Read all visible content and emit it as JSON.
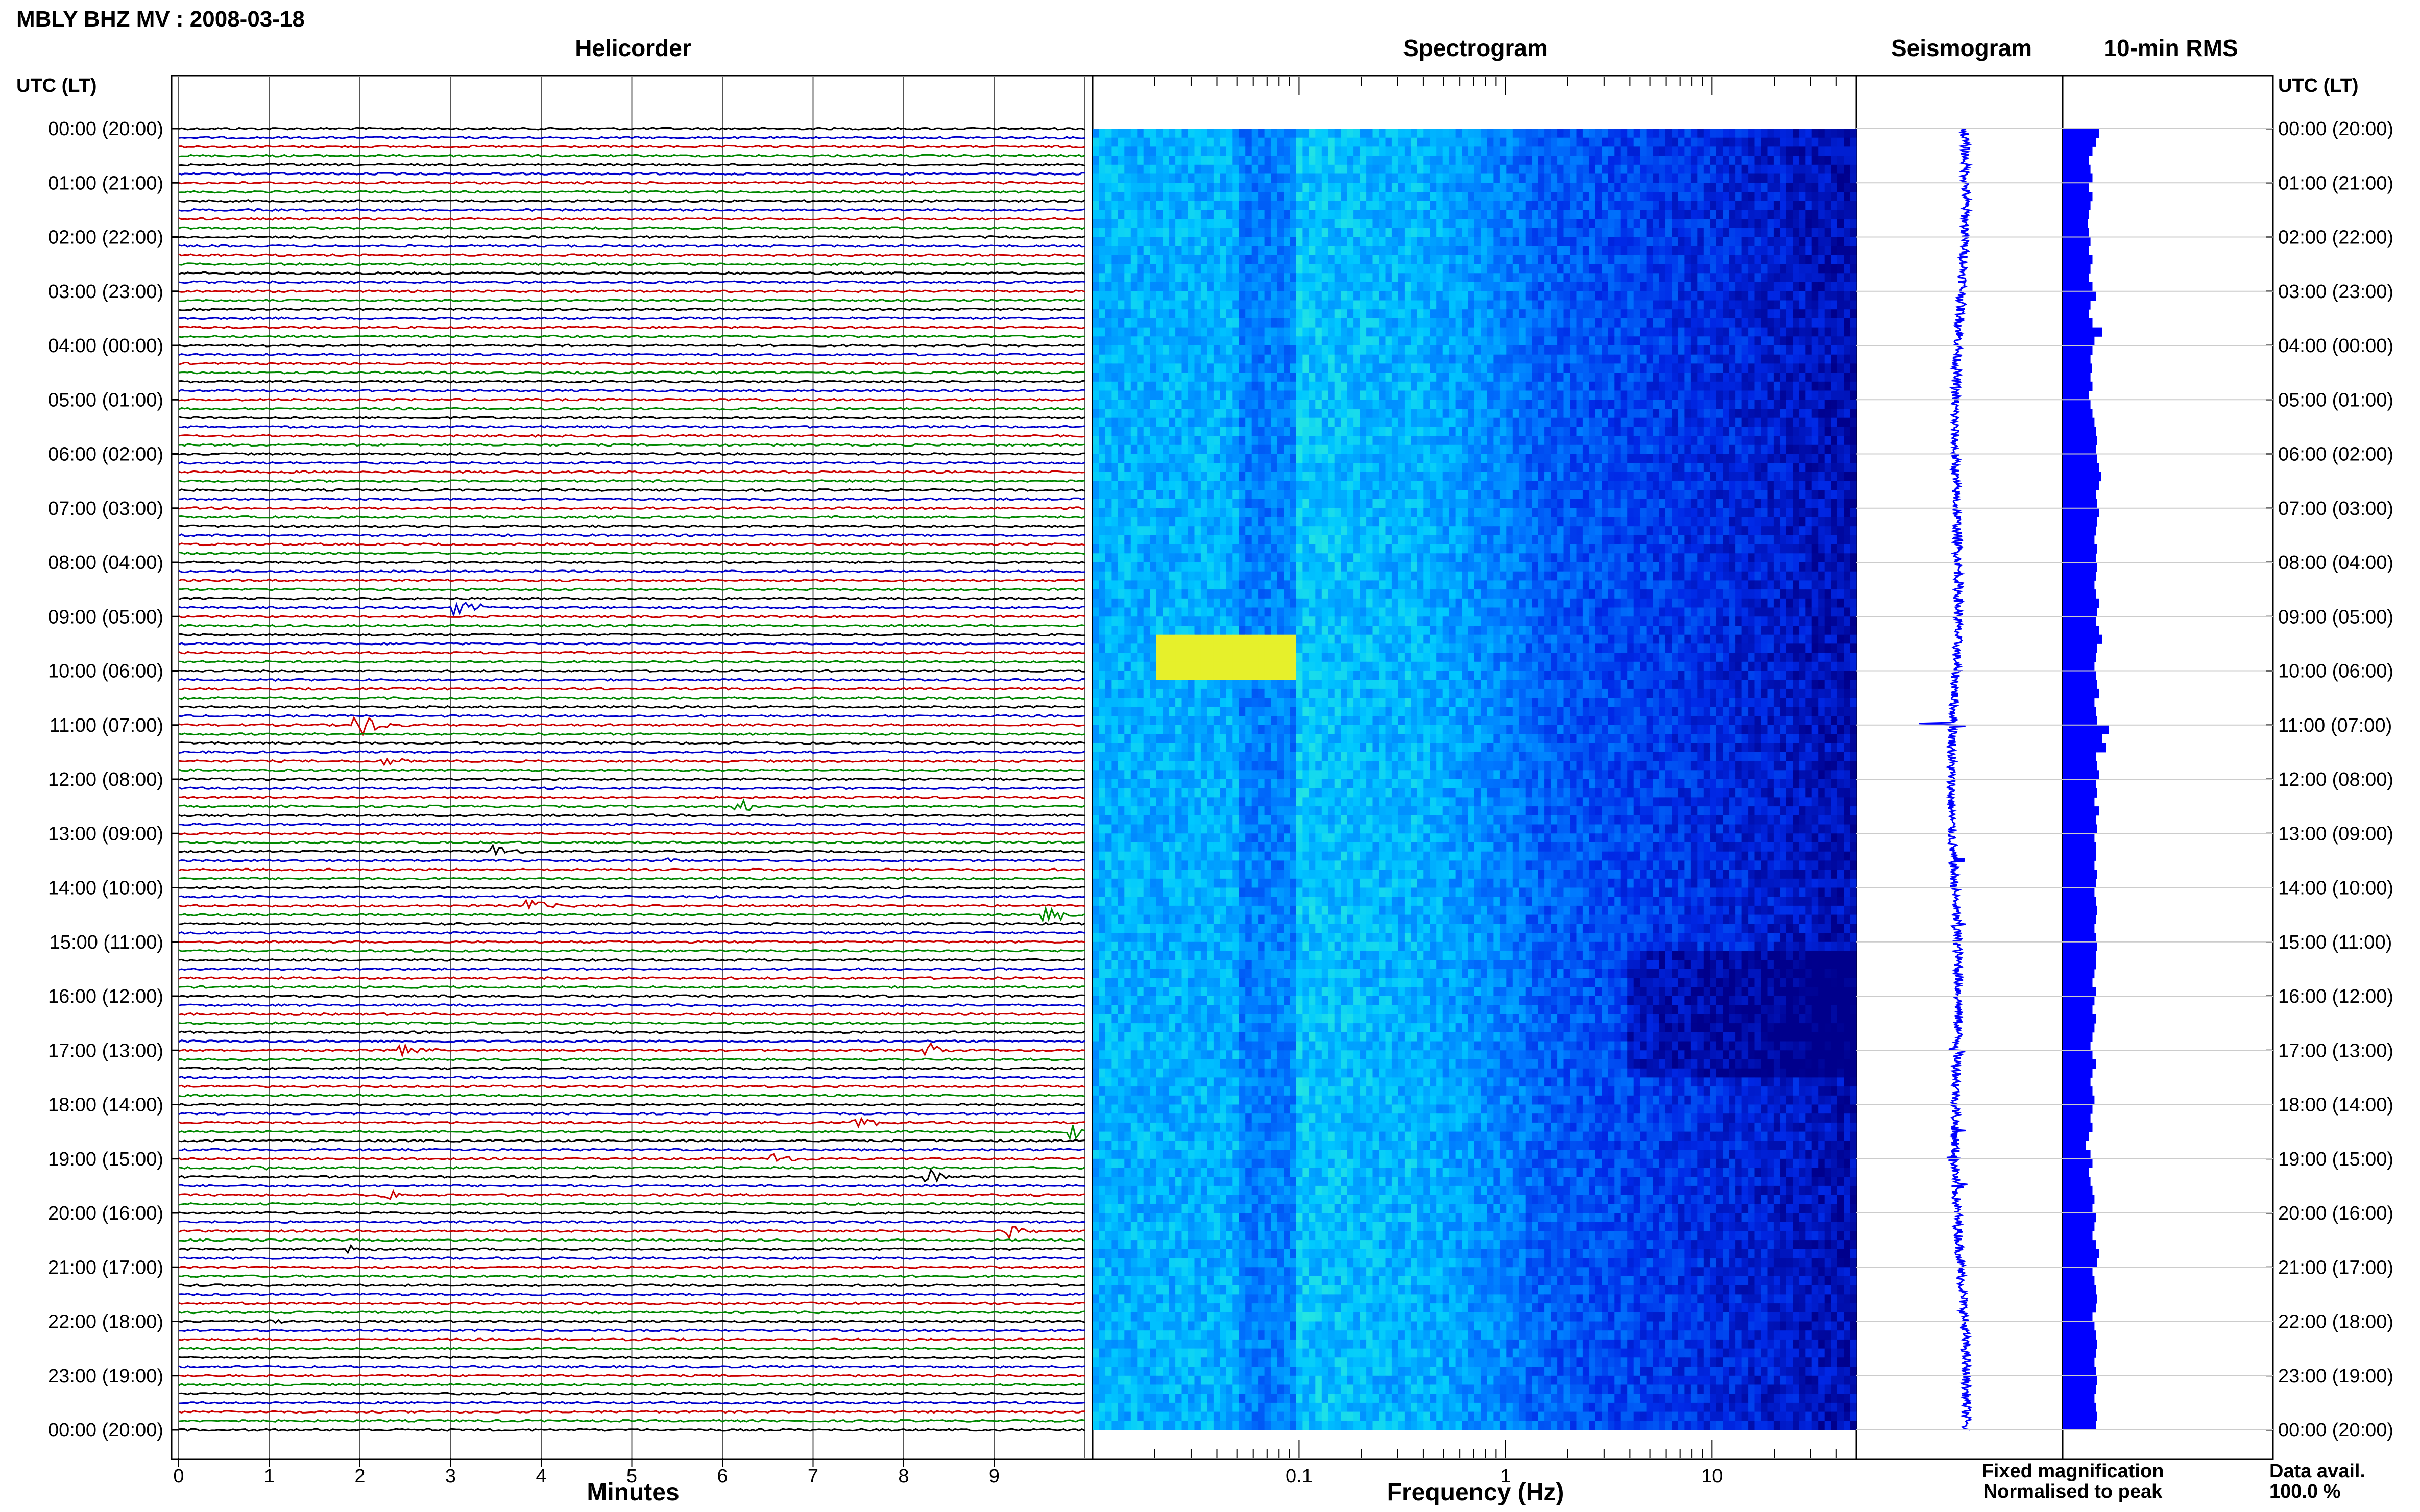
{
  "header": {
    "title": "MBLY BHZ MV : 2008-03-18",
    "utc_label_left": "UTC (LT)",
    "utc_label_right": "UTC (LT)"
  },
  "panels": {
    "helicorder": "Helicorder",
    "spectrogram": "Spectrogram",
    "seismogram": "Seismogram",
    "rms": "10-min RMS"
  },
  "time_labels": [
    "00:00 (20:00)",
    "01:00 (21:00)",
    "02:00 (22:00)",
    "03:00 (23:00)",
    "04:00 (00:00)",
    "05:00 (01:00)",
    "06:00 (02:00)",
    "07:00 (03:00)",
    "08:00 (04:00)",
    "09:00 (05:00)",
    "10:00 (06:00)",
    "11:00 (07:00)",
    "12:00 (08:00)",
    "13:00 (09:00)",
    "14:00 (10:00)",
    "15:00 (11:00)",
    "16:00 (12:00)",
    "17:00 (13:00)",
    "18:00 (14:00)",
    "19:00 (15:00)",
    "20:00 (16:00)",
    "21:00 (17:00)",
    "22:00 (18:00)",
    "23:00 (19:00)",
    "00:00 (20:00)"
  ],
  "legend": {
    "fixed": "Fixed magnification",
    "normalised": "Normalised to peak",
    "fixed_color": "#0000ff",
    "normalised_color": "#ff0000",
    "availability_label": "Data avail.",
    "availability_value": "100.0 %"
  },
  "colors": {
    "trace_cycle": [
      "#000000",
      "#0000cc",
      "#cc0000",
      "#008800"
    ],
    "seismogram": "#0000ff",
    "rms": "#0000ff"
  },
  "chart_data": [
    {
      "type": "line",
      "panel": "helicorder",
      "xlabel": "Minutes",
      "x_ticks": [
        "0",
        "1",
        "2",
        "3",
        "4",
        "5",
        "6",
        "7",
        "8",
        "9"
      ],
      "xlim": [
        0,
        10
      ],
      "lines_per_hour": 6,
      "hours": 24,
      "events": [
        {
          "hour": 8.9,
          "minute": 3.1,
          "amplitude": 0.6
        },
        {
          "hour": 11.0,
          "minute": 2.0,
          "amplitude": 1.0
        },
        {
          "hour": 11.7,
          "minute": 2.3,
          "amplitude": 0.3
        },
        {
          "hour": 12.5,
          "minute": 6.2,
          "amplitude": 0.5
        },
        {
          "hour": 13.3,
          "minute": 3.5,
          "amplitude": 0.5
        },
        {
          "hour": 13.5,
          "minute": 5.4,
          "amplitude": 0.2
        },
        {
          "hour": 14.3,
          "minute": 3.9,
          "amplitude": 0.4
        },
        {
          "hour": 14.5,
          "minute": 9.6,
          "amplitude": 0.6
        },
        {
          "hour": 17.0,
          "minute": 2.5,
          "amplitude": 0.5
        },
        {
          "hour": 17.0,
          "minute": 8.3,
          "amplitude": 0.4
        },
        {
          "hour": 18.3,
          "minute": 7.5,
          "amplitude": 0.5
        },
        {
          "hour": 18.5,
          "minute": 9.9,
          "amplitude": 0.5
        },
        {
          "hour": 19.0,
          "minute": 6.6,
          "amplitude": 0.4
        },
        {
          "hour": 19.2,
          "minute": 0.8,
          "amplitude": 0.3
        },
        {
          "hour": 19.3,
          "minute": 8.3,
          "amplitude": 0.5
        },
        {
          "hour": 19.7,
          "minute": 2.3,
          "amplitude": 0.4
        },
        {
          "hour": 20.3,
          "minute": 9.2,
          "amplitude": 0.5
        },
        {
          "hour": 20.7,
          "minute": 1.9,
          "amplitude": 0.3
        },
        {
          "hour": 22.0,
          "minute": 1.0,
          "amplitude": 0.2
        }
      ]
    },
    {
      "type": "heatmap",
      "panel": "spectrogram",
      "xlabel": "Frequency (Hz)",
      "x_scale": "log",
      "xlim": [
        0.01,
        50
      ],
      "x_ticks": [
        0.1,
        1,
        10
      ],
      "x_tick_labels": [
        "0.1",
        "1",
        "10"
      ],
      "ylim_hours": [
        0,
        24
      ]
    },
    {
      "type": "line",
      "panel": "seismogram",
      "ylim_hours": [
        0,
        24
      ],
      "spikes": [
        {
          "hour": 11.0,
          "amplitude": 1.0
        },
        {
          "hour": 13.5,
          "amplitude": 0.3
        },
        {
          "hour": 14.7,
          "amplitude": 0.3
        },
        {
          "hour": 17.0,
          "amplitude": 0.3
        },
        {
          "hour": 18.5,
          "amplitude": 0.3
        },
        {
          "hour": 19.0,
          "amplitude": 0.3
        },
        {
          "hour": 19.5,
          "amplitude": 0.3
        }
      ]
    },
    {
      "type": "bar",
      "panel": "rms",
      "orientation": "horizontal",
      "bin_minutes": 10,
      "ylim_hours": [
        0,
        24
      ],
      "values": [
        0.55,
        0.5,
        0.45,
        0.4,
        0.42,
        0.45,
        0.4,
        0.45,
        0.42,
        0.4,
        0.38,
        0.4,
        0.42,
        0.4,
        0.45,
        0.42,
        0.4,
        0.45,
        0.5,
        0.42,
        0.4,
        0.45,
        0.6,
        0.48,
        0.45,
        0.42,
        0.44,
        0.42,
        0.45,
        0.4,
        0.42,
        0.45,
        0.48,
        0.5,
        0.52,
        0.5,
        0.52,
        0.55,
        0.58,
        0.55,
        0.5,
        0.52,
        0.55,
        0.52,
        0.5,
        0.48,
        0.52,
        0.5,
        0.52,
        0.5,
        0.48,
        0.5,
        0.55,
        0.52,
        0.5,
        0.55,
        0.6,
        0.52,
        0.5,
        0.48,
        0.5,
        0.52,
        0.55,
        0.48,
        0.5,
        0.52,
        0.7,
        0.6,
        0.65,
        0.5,
        0.52,
        0.55,
        0.5,
        0.52,
        0.48,
        0.55,
        0.5,
        0.52,
        0.48,
        0.5,
        0.5,
        0.48,
        0.52,
        0.5,
        0.48,
        0.5,
        0.52,
        0.5,
        0.48,
        0.5,
        0.52,
        0.5,
        0.5,
        0.48,
        0.45,
        0.5,
        0.48,
        0.45,
        0.5,
        0.48,
        0.45,
        0.42,
        0.45,
        0.5,
        0.45,
        0.42,
        0.45,
        0.48,
        0.45,
        0.42,
        0.45,
        0.4,
        0.35,
        0.42,
        0.45,
        0.4,
        0.42,
        0.45,
        0.48,
        0.45,
        0.5,
        0.48,
        0.45,
        0.5,
        0.55,
        0.52,
        0.45,
        0.48,
        0.5,
        0.52,
        0.5,
        0.45,
        0.48,
        0.5,
        0.52,
        0.5,
        0.48,
        0.5,
        0.52,
        0.5,
        0.48,
        0.5,
        0.52,
        0.5
      ]
    }
  ]
}
